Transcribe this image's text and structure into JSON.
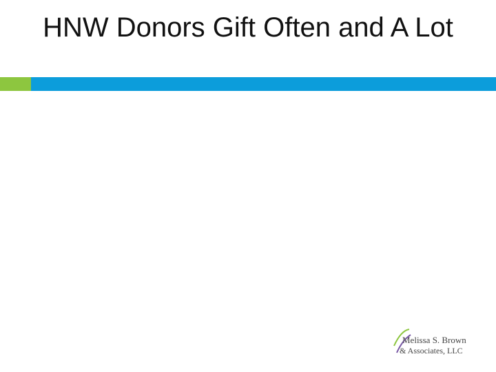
{
  "header": {
    "title": "HNW Donors Gift Often and A Lot"
  },
  "logo": {
    "line1": "Melissa S. Brown",
    "line2": "& Associates, LLC"
  }
}
